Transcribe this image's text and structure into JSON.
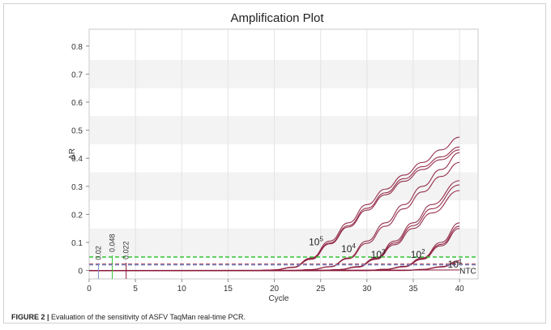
{
  "chart_data": {
    "type": "line",
    "title": "Amplification Plot",
    "xlabel": "Cycle",
    "ylabel": "ΔR",
    "xlim": [
      0,
      42
    ],
    "ylim": [
      -0.03,
      0.86
    ],
    "x_ticks": [
      "0",
      "5",
      "10",
      "15",
      "20",
      "25",
      "30",
      "35",
      "40"
    ],
    "y_ticks": [
      "0",
      "0.1",
      "0.2",
      "0.3",
      "0.4",
      "0.5",
      "0.6",
      "0.7",
      "0.8"
    ],
    "grid": true,
    "thresholds": [
      {
        "label": "0.048",
        "value": 0.048,
        "color": "#33c233",
        "x_cycle": 2.5
      },
      {
        "label": "0.022",
        "value": 0.022,
        "color": "#8a1535",
        "x_cycle": 4.0
      },
      {
        "label": "0.02",
        "value": 0.02,
        "color": "#7a8fc4",
        "x_cycle": 1.0
      }
    ],
    "group_labels": [
      {
        "base": "10",
        "exp": "5",
        "x": 24.5,
        "y": 0.09
      },
      {
        "base": "10",
        "exp": "4",
        "x": 28.0,
        "y": 0.065
      },
      {
        "base": "10",
        "exp": "3",
        "x": 31.2,
        "y": 0.045
      },
      {
        "base": "10",
        "exp": "2",
        "x": 35.5,
        "y": 0.045
      },
      {
        "base": "10",
        "exp": "1",
        "x": 39.5,
        "y": 0.01
      }
    ],
    "ntc_label": "NTC",
    "curve_color": "#8b1a3a",
    "series": [
      {
        "group": "10^5",
        "x": [
          0,
          18,
          20,
          22,
          24,
          26,
          28,
          30,
          32,
          34,
          36,
          38,
          40
        ],
        "values": [
          0,
          0,
          0.002,
          0.012,
          0.045,
          0.105,
          0.17,
          0.235,
          0.29,
          0.34,
          0.385,
          0.43,
          0.475
        ]
      },
      {
        "group": "10^5",
        "x": [
          0,
          18,
          20,
          22,
          24,
          26,
          28,
          30,
          32,
          34,
          36,
          38,
          40
        ],
        "values": [
          0,
          0,
          0.002,
          0.011,
          0.042,
          0.098,
          0.16,
          0.222,
          0.277,
          0.327,
          0.37,
          0.405,
          0.44
        ]
      },
      {
        "group": "10^5",
        "x": [
          0,
          18,
          20,
          22,
          24,
          26,
          28,
          30,
          32,
          34,
          36,
          38,
          40
        ],
        "values": [
          0,
          0,
          0.002,
          0.011,
          0.04,
          0.095,
          0.155,
          0.215,
          0.27,
          0.318,
          0.36,
          0.395,
          0.43
        ]
      },
      {
        "group": "10^4",
        "x": [
          0,
          22,
          24,
          26,
          28,
          30,
          32,
          34,
          36,
          38,
          40
        ],
        "values": [
          0,
          0,
          0.003,
          0.014,
          0.045,
          0.105,
          0.17,
          0.235,
          0.3,
          0.36,
          0.42
        ]
      },
      {
        "group": "10^4",
        "x": [
          0,
          22,
          24,
          26,
          28,
          30,
          32,
          34,
          36,
          38,
          40
        ],
        "values": [
          0,
          0,
          0.003,
          0.013,
          0.042,
          0.097,
          0.158,
          0.22,
          0.28,
          0.335,
          0.385
        ]
      },
      {
        "group": "10^3",
        "x": [
          0,
          25,
          27,
          29,
          31,
          33,
          35,
          37,
          40
        ],
        "values": [
          0,
          0,
          0.003,
          0.014,
          0.045,
          0.105,
          0.17,
          0.235,
          0.32
        ]
      },
      {
        "group": "10^3",
        "x": [
          0,
          25,
          27,
          29,
          31,
          33,
          35,
          37,
          40
        ],
        "values": [
          0,
          0,
          0.003,
          0.013,
          0.042,
          0.098,
          0.16,
          0.22,
          0.305
        ]
      },
      {
        "group": "10^3",
        "x": [
          0,
          25,
          27,
          29,
          31,
          33,
          35,
          37,
          40
        ],
        "values": [
          0,
          0,
          0.003,
          0.012,
          0.04,
          0.092,
          0.15,
          0.205,
          0.285
        ]
      },
      {
        "group": "10^2",
        "x": [
          0,
          30,
          32,
          34,
          36,
          38,
          40
        ],
        "values": [
          0,
          0,
          0.004,
          0.015,
          0.045,
          0.1,
          0.17
        ]
      },
      {
        "group": "10^2",
        "x": [
          0,
          30,
          32,
          34,
          36,
          38,
          40
        ],
        "values": [
          0,
          0,
          0.004,
          0.014,
          0.042,
          0.093,
          0.158
        ]
      },
      {
        "group": "10^2",
        "x": [
          0,
          30,
          32,
          34,
          36,
          38,
          40
        ],
        "values": [
          0,
          0,
          0.004,
          0.013,
          0.04,
          0.088,
          0.15
        ]
      },
      {
        "group": "10^1",
        "x": [
          0,
          34,
          36,
          38,
          40
        ],
        "values": [
          0,
          0,
          0.004,
          0.014,
          0.035
        ]
      },
      {
        "group": "10^1",
        "x": [
          0,
          34,
          36,
          38,
          40
        ],
        "values": [
          0,
          0,
          0.003,
          0.012,
          0.03
        ]
      },
      {
        "group": "NTC",
        "x": [
          0,
          40
        ],
        "values": [
          0,
          0.002
        ]
      }
    ]
  },
  "caption": {
    "label": "FIGURE 2 |",
    "text": " Evaluation of the sensitivity of ASFV TaqMan real-time PCR."
  }
}
